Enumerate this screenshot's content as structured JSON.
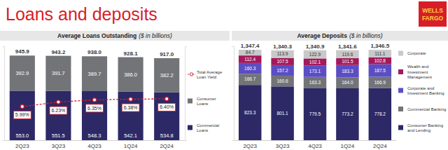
{
  "header": {
    "title": "Loans and deposits",
    "logo": [
      "WELLS",
      "FARGO"
    ]
  },
  "chart_data": [
    {
      "type": "bar",
      "title": "Average Loans Outstanding",
      "subtitle": "($ in billions)",
      "categories": [
        "2Q23",
        "3Q23",
        "4Q23",
        "1Q24",
        "2Q24"
      ],
      "stacked": true,
      "data_labels": true,
      "legend": "right",
      "tick_labels": "x",
      "ylim": [
        0,
        1050
      ],
      "y2lim": [
        4.2,
        9.2
      ],
      "series": [
        {
          "name": "Commercial Loans",
          "type": "bar",
          "color": "#2d2966",
          "values": [
            553.0,
            551.5,
            548.3,
            542.1,
            534.8
          ],
          "value_labels": [
            "553.0",
            "551.5",
            "548.3",
            "542.1",
            "534.8"
          ]
        },
        {
          "name": "Consumer Loans",
          "type": "bar",
          "color": "#737478",
          "values": [
            392.9,
            391.7,
            389.7,
            386.0,
            382.2
          ],
          "value_labels": [
            "392.9",
            "391.7",
            "389.7",
            "386.0",
            "382.2"
          ]
        },
        {
          "name": "Total Average Loan Yield",
          "type": "line",
          "axis": "y2",
          "color": "#d71e28",
          "marker": "circle",
          "line_style": "dashed",
          "values": [
            5.99,
            6.23,
            6.35,
            6.38,
            6.4
          ],
          "value_labels": [
            "5.99%",
            "6.23%",
            "6.35%",
            "6.38%",
            "6.40%"
          ]
        }
      ],
      "totals": [
        945.9,
        943.2,
        938.0,
        928.1,
        917.0
      ],
      "total_labels": [
        "945.9",
        "943.2",
        "938.0",
        "928.1",
        "917.0"
      ]
    },
    {
      "type": "bar",
      "title": "Average Deposits",
      "subtitle": "($ in billions)",
      "categories": [
        "2Q23",
        "3Q23",
        "4Q23",
        "1Q24",
        "2Q24"
      ],
      "stacked": true,
      "data_labels": true,
      "legend": "right",
      "tick_labels": "x",
      "ylim": [
        0,
        1400
      ],
      "series": [
        {
          "name": "Consumer Banking and Lending",
          "type": "bar",
          "color": "#2d2966",
          "values": [
            823.3,
            801.1,
            779.5,
            773.2,
            778.2
          ],
          "value_labels": [
            "823.3",
            "801.1",
            "779.5",
            "773.2",
            "778.2"
          ]
        },
        {
          "name": "Commercial Banking",
          "type": "bar",
          "color": "#737478",
          "values": [
            166.7,
            160.6,
            163.3,
            164.0,
            166.9
          ],
          "value_labels": [
            "166.7",
            "160.6",
            "163.3",
            "164.0",
            "166.9"
          ]
        },
        {
          "name": "Corporate and Investment Banking",
          "type": "bar",
          "color": "#5b4ec4",
          "values": [
            160.3,
            157.2,
            173.1,
            183.3,
            187.5
          ],
          "value_labels": [
            "160.3",
            "157.2",
            "173.1",
            "183.3",
            "187.5"
          ]
        },
        {
          "name": "Wealth and Investment Management",
          "type": "bar",
          "color": "#a3195c",
          "values": [
            112.4,
            107.5,
            102.1,
            101.5,
            102.8
          ],
          "value_labels": [
            "112.4",
            "107.5",
            "102.1",
            "101.5",
            "102.8"
          ]
        },
        {
          "name": "Corporate",
          "type": "bar",
          "color": "#c9c9c9",
          "values": [
            84.7,
            113.9,
            122.9,
            119.6,
            111.1
          ],
          "value_labels": [
            "84.7",
            "113.9",
            "122.9",
            "119.6",
            "111.1"
          ]
        }
      ],
      "totals": [
        1347.4,
        1340.3,
        1340.9,
        1341.6,
        1346.5
      ],
      "total_labels": [
        "1,347.4",
        "1,340.3",
        "1,340.9",
        "1,341.6",
        "1,346.5"
      ]
    }
  ]
}
